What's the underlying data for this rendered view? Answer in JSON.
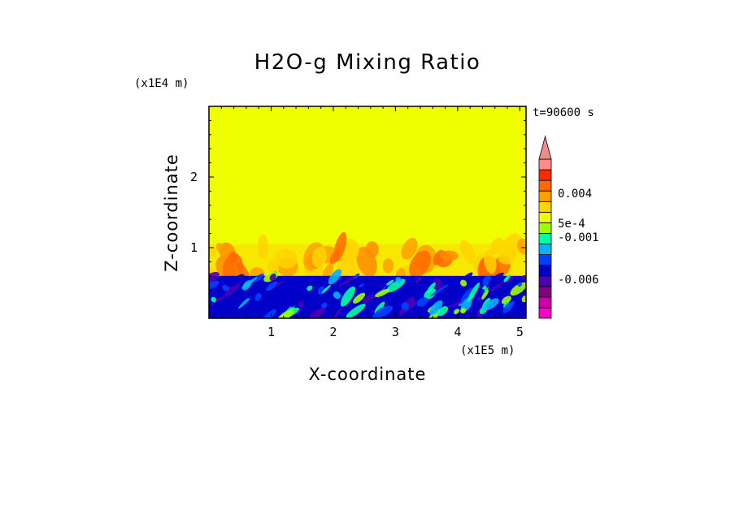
{
  "chart_data": {
    "type": "heatmap",
    "title": "H2O-g Mixing Ratio",
    "xlabel": "X-coordinate",
    "ylabel": "Z-coordinate",
    "x_scale_label": "(x1E5 m)",
    "y_scale_label": "(x1E4 m)",
    "time_label": "t=90600 s",
    "x_ticks": [
      "1",
      "2",
      "3",
      "4",
      "5"
    ],
    "x_tick_values": [
      1,
      2,
      3,
      4,
      5
    ],
    "y_ticks": [
      "1",
      "2"
    ],
    "y_tick_values": [
      1,
      2
    ],
    "xlim": [
      0,
      5.1
    ],
    "ylim": [
      0,
      3
    ],
    "colorbar": {
      "tick_labels": [
        "0.004",
        "5e-4",
        "-0.001",
        "-0.006"
      ],
      "colors": [
        "#ff00cc",
        "#cc00aa",
        "#800080",
        "#4b00b4",
        "#0000c8",
        "#0040ff",
        "#00b4ff",
        "#00ffa0",
        "#a0ff00",
        "#f0ff00",
        "#ffd400",
        "#ffa000",
        "#ff6a00",
        "#ff2a00",
        "#ff8c8c"
      ],
      "extend_max_color": "#f08c8c"
    },
    "regions": {
      "background_color": "#f0ff00",
      "lower_layer_top_z": 0.6,
      "plume_top_z": 1.05,
      "lower_layer_color": "#0000c8"
    }
  }
}
